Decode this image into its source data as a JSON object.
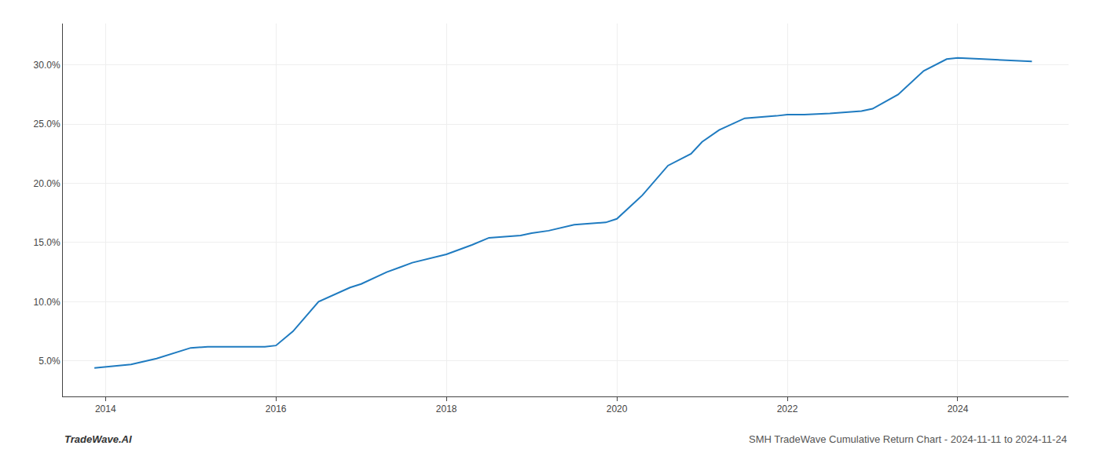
{
  "chart_data": {
    "type": "line",
    "x": [
      2013.87,
      2014.0,
      2014.3,
      2014.6,
      2014.87,
      2015.0,
      2015.2,
      2015.5,
      2015.87,
      2016.0,
      2016.2,
      2016.5,
      2016.87,
      2017.0,
      2017.3,
      2017.6,
      2017.87,
      2018.0,
      2018.3,
      2018.5,
      2018.87,
      2019.0,
      2019.2,
      2019.5,
      2019.87,
      2020.0,
      2020.3,
      2020.6,
      2020.87,
      2021.0,
      2021.2,
      2021.5,
      2021.87,
      2022.0,
      2022.2,
      2022.5,
      2022.87,
      2023.0,
      2023.3,
      2023.6,
      2023.87,
      2024.0,
      2024.3,
      2024.6,
      2024.87
    ],
    "values": [
      4.4,
      4.5,
      4.7,
      5.2,
      5.8,
      6.1,
      6.2,
      6.2,
      6.2,
      6.3,
      7.5,
      10.0,
      11.2,
      11.5,
      12.5,
      13.3,
      13.8,
      14.0,
      14.8,
      15.4,
      15.6,
      15.8,
      16.0,
      16.5,
      16.7,
      17.0,
      19.0,
      21.5,
      22.5,
      23.5,
      24.5,
      25.5,
      25.7,
      25.8,
      25.8,
      25.9,
      26.1,
      26.3,
      27.5,
      29.5,
      30.5,
      30.6,
      30.5,
      30.4,
      30.3
    ],
    "color": "#1f7bc0",
    "xlim": [
      2013.5,
      2025.3
    ],
    "xticks": [
      2014,
      2016,
      2018,
      2020,
      2022,
      2024
    ],
    "ylim": [
      2.0,
      33.5
    ],
    "yticks": [
      {
        "value": 5.0,
        "label": "5.0%"
      },
      {
        "value": 10.0,
        "label": "10.0%"
      },
      {
        "value": 15.0,
        "label": "15.0%"
      },
      {
        "value": 20.0,
        "label": "20.0%"
      },
      {
        "value": 25.0,
        "label": "25.0%"
      },
      {
        "value": 30.0,
        "label": "30.0%"
      }
    ],
    "grid": true,
    "annotations": [
      "TradeWave.AI",
      "SMH TradeWave Cumulative Return Chart - 2024-11-11 to 2024-11-24"
    ]
  }
}
